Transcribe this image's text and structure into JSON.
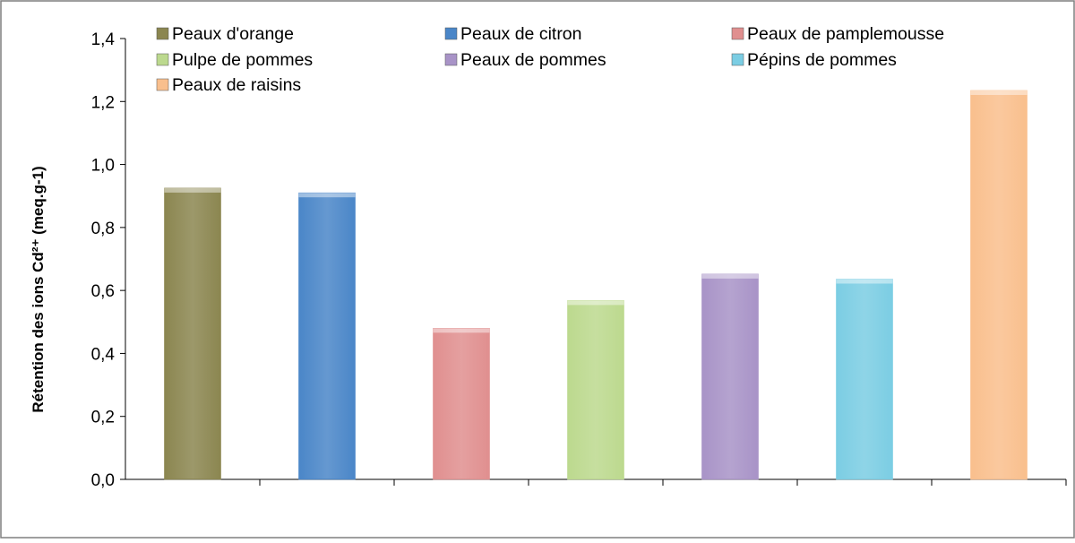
{
  "chart_data": {
    "type": "bar",
    "title": "",
    "xlabel": "",
    "ylabel": "Rétention des ions Cd²⁺ (meq.g-1)",
    "ylim": [
      0,
      1.4
    ],
    "yticks": [
      "0,0",
      "0,2",
      "0,4",
      "0,6",
      "0,8",
      "1,0",
      "1,2",
      "1,4"
    ],
    "grid": false,
    "legend_position": "top",
    "series": [
      {
        "name": "Peaux d'orange",
        "value": 0.925,
        "color": "#8b8650"
      },
      {
        "name": "Peaux de citron",
        "value": 0.91,
        "color": "#4a86c8"
      },
      {
        "name": "Peaux de pamplemousse",
        "value": 0.48,
        "color": "#e08f8f"
      },
      {
        "name": "Pulpe de pommes",
        "value": 0.568,
        "color": "#bcd98e"
      },
      {
        "name": "Peaux de pommes",
        "value": 0.652,
        "color": "#a893c7"
      },
      {
        "name": "Pépins de pommes",
        "value": 0.636,
        "color": "#7bcde3"
      },
      {
        "name": "Peaux de raisins",
        "value": 1.235,
        "color": "#f9bf8d"
      }
    ]
  }
}
